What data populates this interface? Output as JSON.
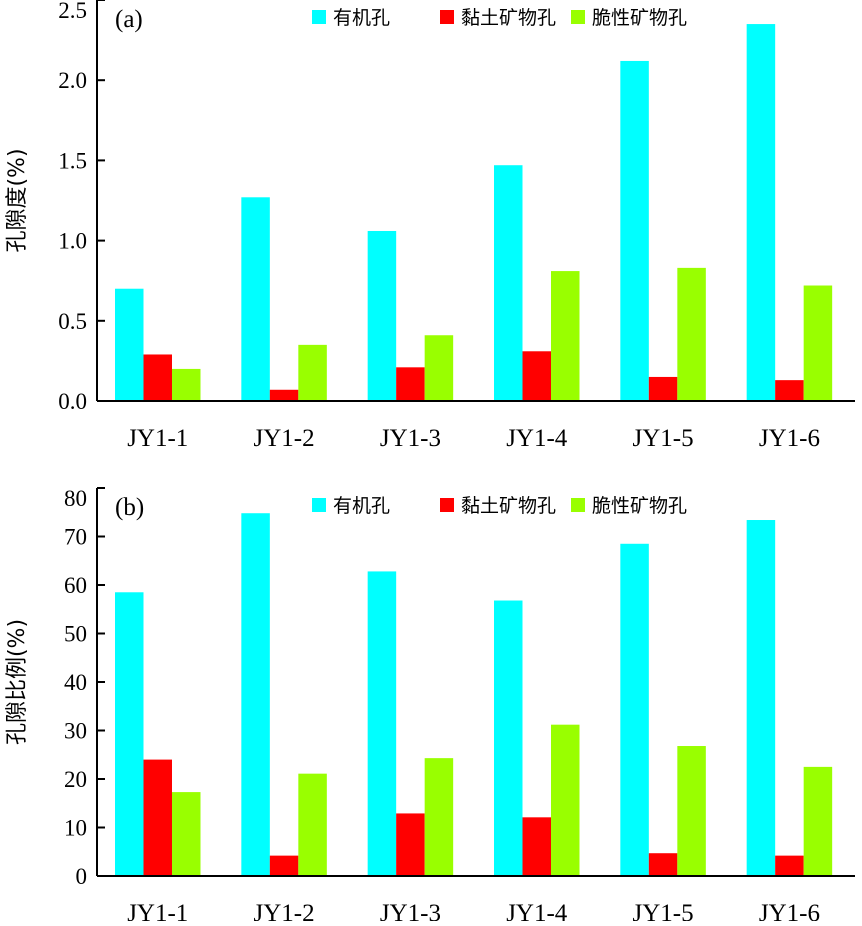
{
  "chart_data": [
    {
      "type": "bar",
      "panel_label": "(a)",
      "ylabel": "孔隙度(%)",
      "categories": [
        "JY1-1",
        "JY1-2",
        "JY1-3",
        "JY1-4",
        "JY1-5",
        "JY1-6"
      ],
      "ylim": [
        0,
        2.5
      ],
      "yticks": [
        "0.0",
        "0.5",
        "1.0",
        "1.5",
        "2.0",
        "2.5"
      ],
      "legend_position": "top-right",
      "series": [
        {
          "name": "有机孔",
          "color": "#00ffff",
          "values": [
            0.7,
            1.27,
            1.06,
            1.47,
            2.12,
            2.35
          ]
        },
        {
          "name": "黏土矿物孔",
          "color": "#ff0000",
          "values": [
            0.29,
            0.07,
            0.21,
            0.31,
            0.15,
            0.13
          ]
        },
        {
          "name": "脆性矿物孔",
          "color": "#99ff00",
          "values": [
            0.2,
            0.35,
            0.41,
            0.81,
            0.83,
            0.72
          ]
        }
      ]
    },
    {
      "type": "bar",
      "panel_label": "(b)",
      "ylabel": "孔隙比例(%)",
      "categories": [
        "JY1-1",
        "JY1-2",
        "JY1-3",
        "JY1-4",
        "JY1-5",
        "JY1-6"
      ],
      "ylim": [
        0,
        80
      ],
      "yticks": [
        "0",
        "10",
        "20",
        "30",
        "40",
        "50",
        "60",
        "70",
        "80"
      ],
      "legend_position": "top-right",
      "series": [
        {
          "name": "有机孔",
          "color": "#00ffff",
          "values": [
            58.5,
            74.8,
            62.8,
            56.8,
            68.5,
            73.4
          ]
        },
        {
          "name": "黏土矿物孔",
          "color": "#ff0000",
          "values": [
            24.0,
            4.2,
            12.9,
            12.1,
            4.7,
            4.2
          ]
        },
        {
          "name": "脆性矿物孔",
          "color": "#99ff00",
          "values": [
            17.3,
            21.1,
            24.3,
            31.2,
            26.8,
            22.5
          ]
        }
      ]
    }
  ]
}
